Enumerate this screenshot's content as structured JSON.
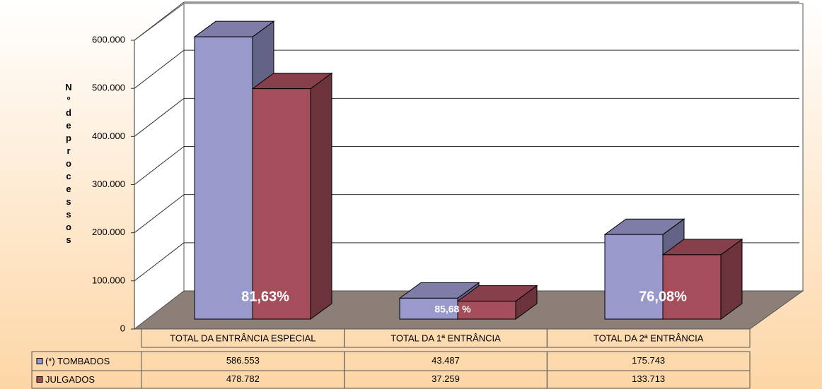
{
  "chart_data": {
    "type": "bar3d",
    "y_label": "Nº de processos",
    "categories": [
      "TOTAL DA ENTRÂNCIA ESPECIAL",
      "TOTAL DA 1ª ENTRÂNCIA",
      "TOTAL DA 2ª ENTRÂNCIA"
    ],
    "series": [
      {
        "name": "(*) TOMBADOS",
        "color": "#9999cc",
        "values": [
          586553,
          43487,
          175743
        ],
        "value_labels": [
          "586.553",
          "43.487",
          "175.743"
        ]
      },
      {
        "name": "JULGADOS",
        "color": "#a54e5b",
        "values": [
          478782,
          37259,
          133713
        ],
        "value_labels": [
          "478.782",
          "37.259",
          "133.713"
        ]
      }
    ],
    "annotations": [
      "81,63%",
      "85,68 %",
      "76,08%"
    ],
    "ylim": [
      0,
      600000
    ],
    "yticks": [
      0,
      {
        "value": 100000,
        "label": "100.000"
      },
      {
        "value": 200000,
        "label": "200.000"
      },
      {
        "value": 300000,
        "label": "300.000"
      },
      {
        "value": 400000,
        "label": "400.000"
      },
      {
        "value": 500000,
        "label": "500.000"
      },
      {
        "value": 600000,
        "label": "600.000"
      }
    ],
    "grid": true
  }
}
